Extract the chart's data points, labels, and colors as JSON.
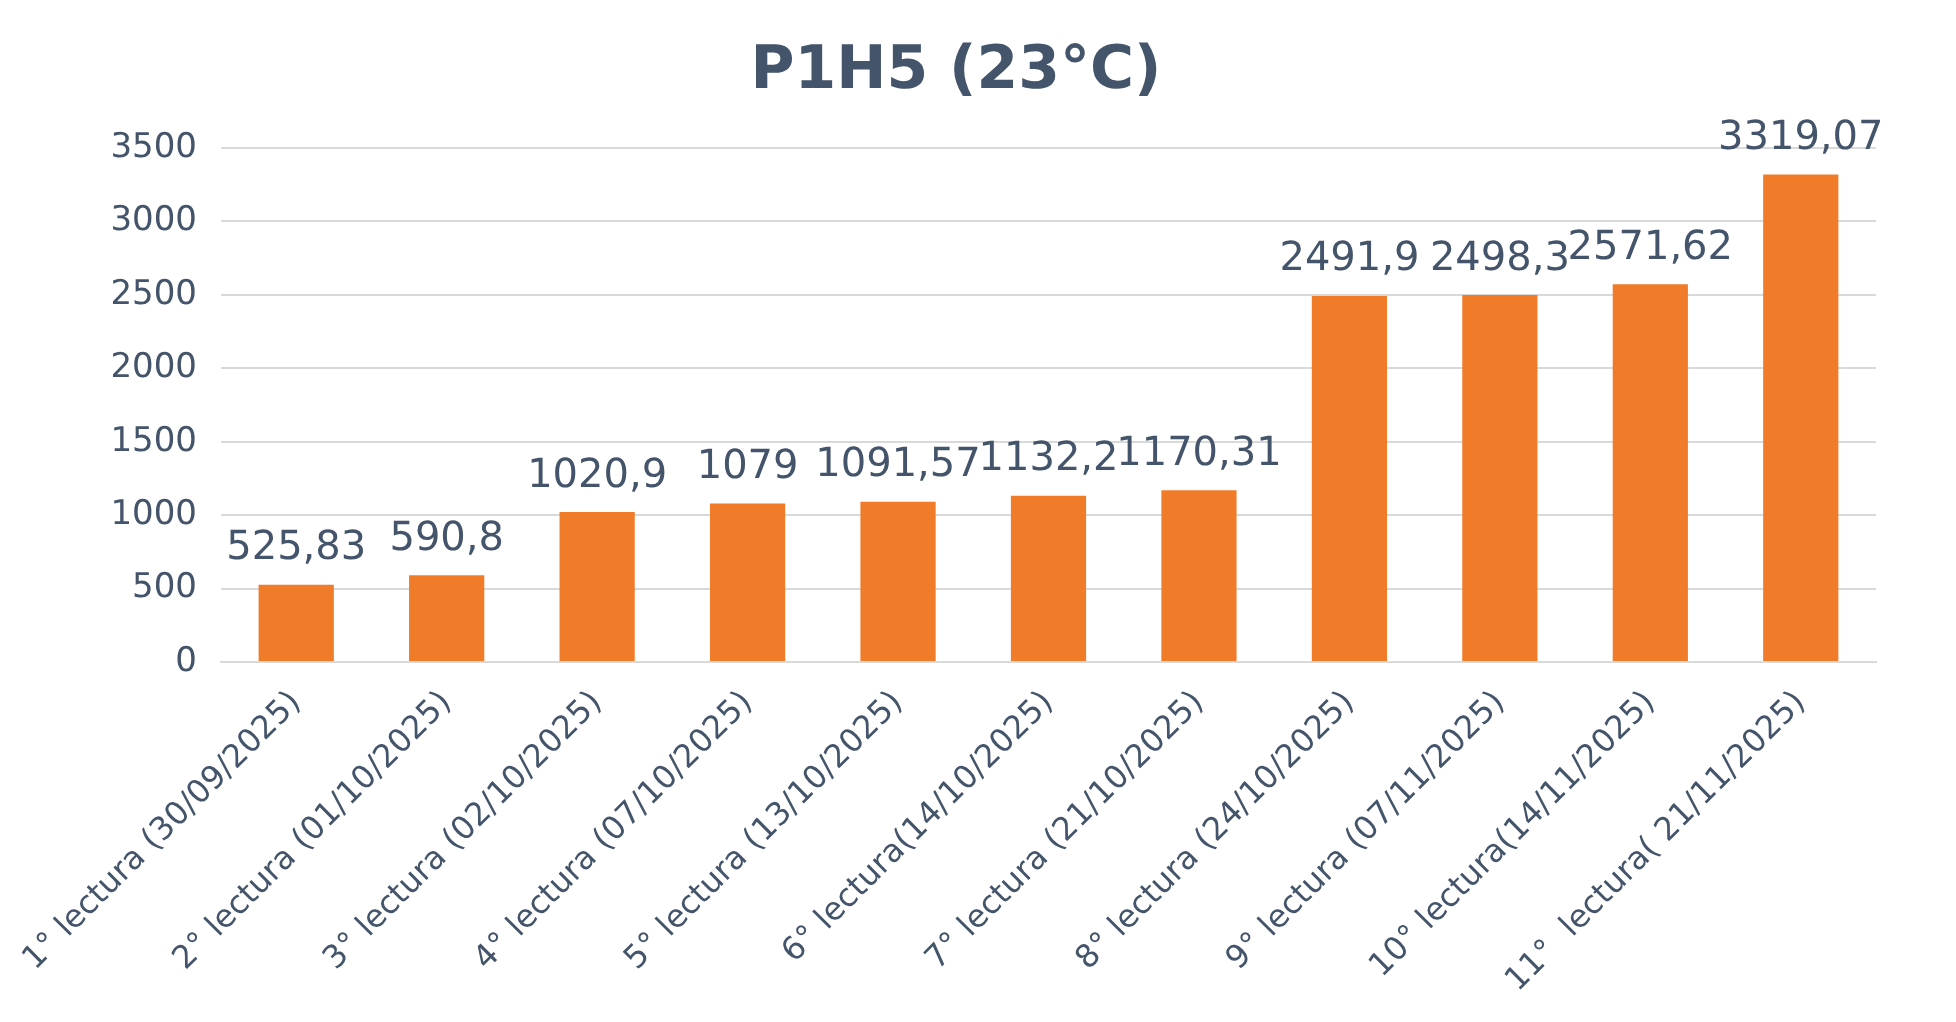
{
  "chart_data": {
    "type": "bar",
    "title": "P1H5 (23°C)",
    "categories": [
      "1° lectura (30/09/2025)",
      "2° lectura (01/10/2025)",
      "3° lectura (02/10/2025)",
      "4° lectura (07/10/2025)",
      "5° lectura (13/10/2025)",
      "6° lectura(14/10/2025)",
      "7° lectura (21/10/2025)",
      "8° lectura (24/10/2025)",
      "9° lectura (07/11/2025)",
      "10° lectura(14/11/2025)",
      "11°  lectura( 21/11/2025)"
    ],
    "values": [
      525.83,
      590.8,
      1020.9,
      1079,
      1091.57,
      1132.2,
      1170.31,
      2491.9,
      2498.3,
      2571.62,
      3319.07
    ],
    "value_labels": [
      "525,83",
      "590,8",
      "1020,9",
      "1079",
      "1091,57",
      "1132,2",
      "1170,31",
      "2491,9",
      "2498,3",
      "2571,62",
      "3319,07"
    ],
    "color": "#f07c2a",
    "ylim": [
      0,
      3500
    ],
    "yticks": [
      0,
      500,
      1000,
      1500,
      2000,
      2500,
      3000,
      3500
    ],
    "grid": "y",
    "legend": false
  }
}
